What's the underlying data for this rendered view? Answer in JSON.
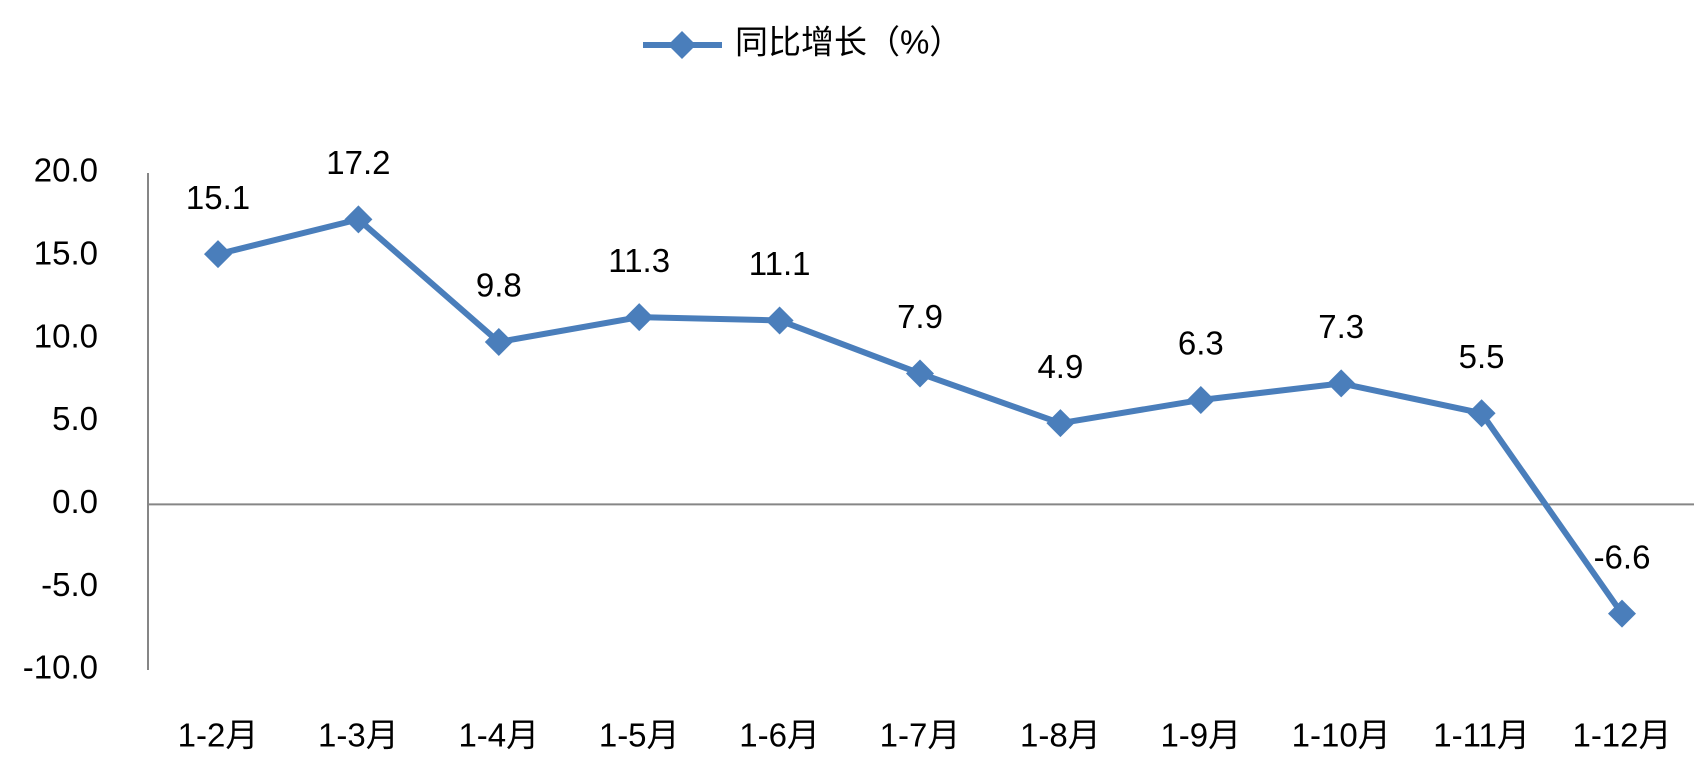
{
  "chart_data": {
    "type": "line",
    "categories": [
      "1-2月",
      "1-3月",
      "1-4月",
      "1-5月",
      "1-6月",
      "1-7月",
      "1-8月",
      "1-9月",
      "1-10月",
      "1-11月",
      "1-12月"
    ],
    "series": [
      {
        "name": "同比增长（%）",
        "color": "#4a7ebb",
        "values": [
          15.1,
          17.2,
          9.8,
          11.3,
          11.1,
          7.9,
          4.9,
          6.3,
          7.3,
          5.5,
          -6.6
        ]
      }
    ],
    "ylim": [
      -10,
      20
    ],
    "yticks": [
      {
        "value": -10,
        "label": "-10.0"
      },
      {
        "value": -5,
        "label": "-5.0"
      },
      {
        "value": 0,
        "label": "0.0"
      },
      {
        "value": 5,
        "label": "5.0"
      },
      {
        "value": 10,
        "label": "10.0"
      },
      {
        "value": 15,
        "label": "15.0"
      },
      {
        "value": 20,
        "label": "20.0"
      }
    ]
  }
}
